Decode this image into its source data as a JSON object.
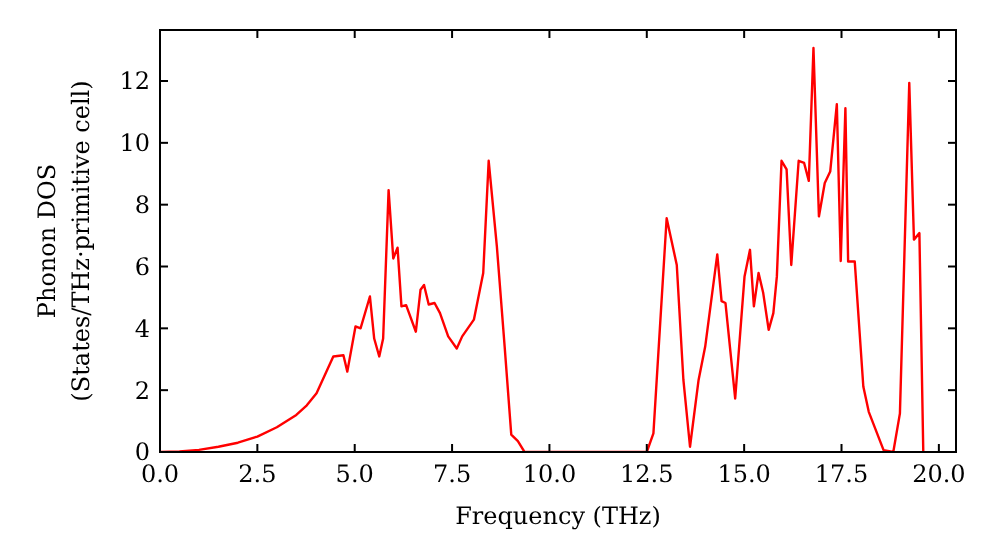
{
  "chart_data": {
    "type": "line",
    "xlabel": "Frequency (THz)",
    "ylabel": "Phonon DOS\n(States/THz·primitive cell)",
    "xlim": [
      0,
      20.44
    ],
    "ylim": [
      0,
      13.65
    ],
    "xticks": [
      {
        "value": 0,
        "label": "0.0"
      },
      {
        "value": 2.5,
        "label": "2.5"
      },
      {
        "value": 5,
        "label": "5.0"
      },
      {
        "value": 7.5,
        "label": "7.5"
      },
      {
        "value": 10,
        "label": "10.0"
      },
      {
        "value": 12.5,
        "label": "12.5"
      },
      {
        "value": 15,
        "label": "15.0"
      },
      {
        "value": 17.5,
        "label": "17.5"
      },
      {
        "value": 20,
        "label": "20.0"
      }
    ],
    "yticks": [
      0,
      2,
      4,
      6,
      8,
      10,
      12
    ],
    "grid": false,
    "marker": "none",
    "line_style": "solid",
    "series": [
      {
        "color": "#ff0000",
        "x": [
          0,
          0.5,
          1.0,
          1.5,
          2.0,
          2.5,
          3.0,
          3.5,
          3.77,
          4.02,
          4.45,
          4.71,
          4.81,
          5.02,
          5.15,
          5.39,
          5.5,
          5.63,
          5.73,
          5.87,
          5.99,
          6.1,
          6.2,
          6.32,
          6.57,
          6.69,
          6.78,
          6.9,
          7.05,
          7.19,
          7.4,
          7.62,
          7.76,
          8.06,
          8.3,
          8.44,
          8.65,
          8.85,
          9.02,
          9.19,
          9.36,
          12.5,
          12.67,
          13.01,
          13.27,
          13.44,
          13.61,
          13.83,
          14.0,
          14.31,
          14.42,
          14.52,
          14.77,
          15.01,
          15.15,
          15.25,
          15.37,
          15.49,
          15.63,
          15.75,
          15.84,
          15.96,
          16.09,
          16.21,
          16.4,
          16.54,
          16.66,
          16.78,
          16.92,
          17.07,
          17.21,
          17.38,
          17.48,
          17.6,
          17.67,
          17.84,
          18.06,
          18.2,
          18.58,
          18.83,
          19.0,
          19.24,
          19.36,
          19.5,
          19.6
        ],
        "values": [
          0,
          0.02,
          0.07,
          0.17,
          0.3,
          0.5,
          0.8,
          1.2,
          1.51,
          1.9,
          3.09,
          3.13,
          2.6,
          4.06,
          4.0,
          5.03,
          3.67,
          3.09,
          3.67,
          8.47,
          6.26,
          6.61,
          4.71,
          4.75,
          3.89,
          5.25,
          5.4,
          4.77,
          4.82,
          4.49,
          3.74,
          3.35,
          3.74,
          4.28,
          5.79,
          9.42,
          6.65,
          3.41,
          0.56,
          0.35,
          0,
          0,
          0.6,
          7.56,
          6.05,
          2.33,
          0.17,
          2.33,
          3.41,
          6.39,
          4.88,
          4.82,
          1.73,
          5.68,
          6.54,
          4.71,
          5.79,
          5.14,
          3.95,
          4.49,
          5.68,
          9.42,
          9.14,
          6.05,
          9.42,
          9.35,
          8.77,
          13.07,
          7.62,
          8.7,
          9.07,
          11.25,
          6.18,
          11.12,
          6.16,
          6.16,
          2.12,
          1.3,
          0.06,
          0,
          1.25,
          11.94,
          6.87,
          7.08,
          0
        ]
      }
    ]
  }
}
